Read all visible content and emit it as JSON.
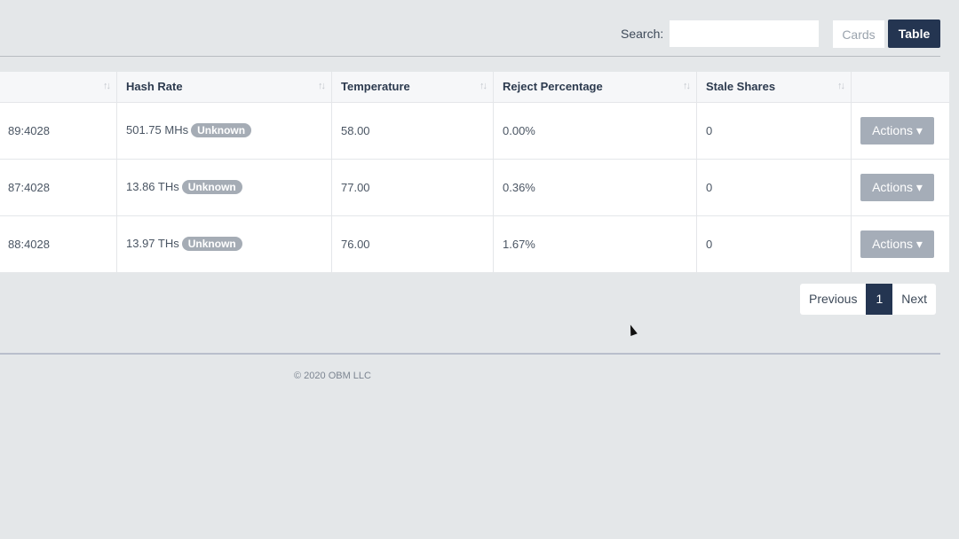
{
  "toolbar": {
    "search_label": "Search:",
    "search_value": "",
    "cards_label": "Cards",
    "table_label": "Table"
  },
  "table": {
    "headers": [
      "",
      "Hash Rate",
      "Temperature",
      "Reject Percentage",
      "Stale Shares",
      ""
    ],
    "sort_icon": "↑↓",
    "rows": [
      {
        "address": "89:4028",
        "hash_rate": "501.75 MHs",
        "status": "Unknown",
        "temperature": "58.00",
        "reject": "0.00%",
        "stale": "0",
        "action": "Actions ▾"
      },
      {
        "address": "87:4028",
        "hash_rate": "13.86 THs",
        "status": "Unknown",
        "temperature": "77.00",
        "reject": "0.36%",
        "stale": "0",
        "action": "Actions ▾"
      },
      {
        "address": "88:4028",
        "hash_rate": "13.97 THs",
        "status": "Unknown",
        "temperature": "76.00",
        "reject": "1.67%",
        "stale": "0",
        "action": "Actions ▾"
      }
    ]
  },
  "pagination": {
    "previous": "Previous",
    "current": "1",
    "next": "Next"
  },
  "footer": {
    "copyright": "© 2020 OBM LLC"
  }
}
